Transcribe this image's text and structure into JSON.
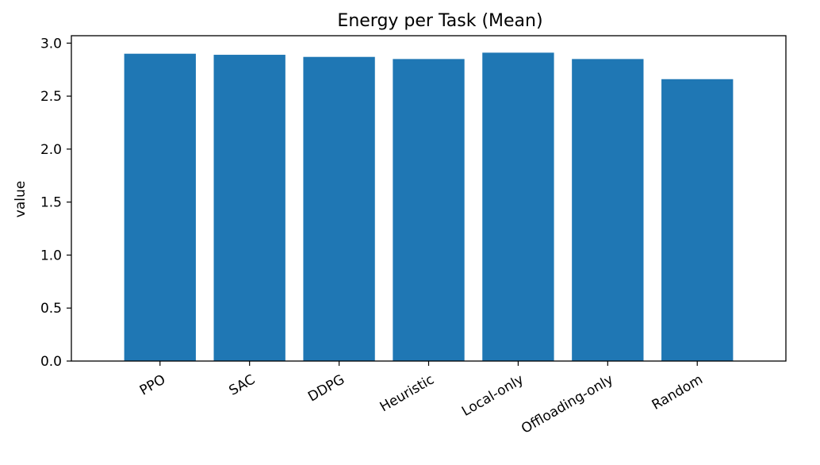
{
  "chart_data": {
    "type": "bar",
    "title": "Energy per Task (Mean)",
    "xlabel": "",
    "ylabel": "value",
    "categories": [
      "PPO",
      "SAC",
      "DDPG",
      "Heuristic",
      "Local-only",
      "Offloading-only",
      "Random"
    ],
    "values": [
      2.9,
      2.89,
      2.87,
      2.85,
      2.91,
      2.85,
      2.66
    ],
    "ylim": [
      0,
      3.07
    ],
    "yticks": [
      0.0,
      0.5,
      1.0,
      1.5,
      2.0,
      2.5,
      3.0
    ],
    "ytick_labels": [
      "0.0",
      "0.5",
      "1.0",
      "1.5",
      "2.0",
      "2.5",
      "3.0"
    ],
    "xtick_rotation_deg": 30,
    "grid": false,
    "legend": "none",
    "bar_color": "#1f77b4"
  }
}
